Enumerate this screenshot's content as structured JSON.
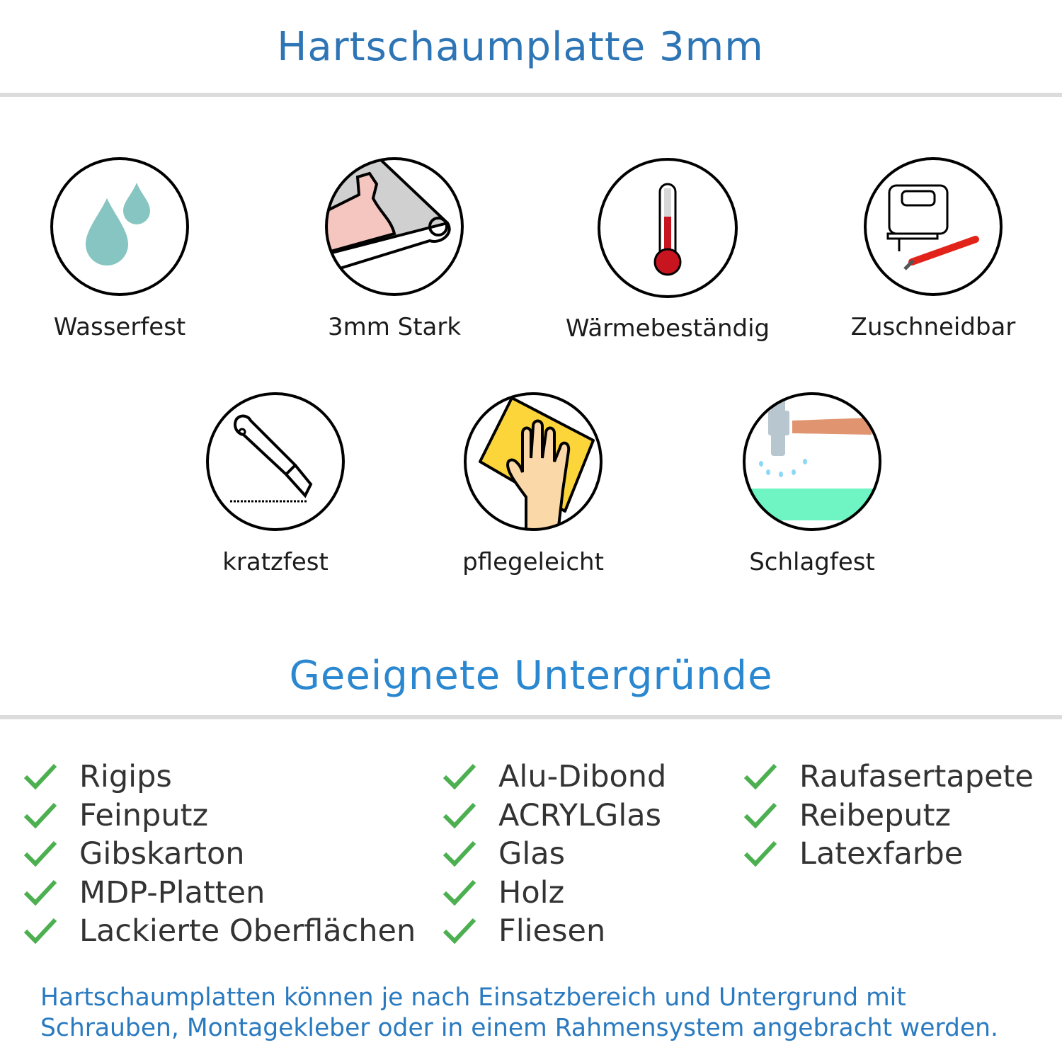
{
  "header": {
    "title": "Hartschaumplatte 3mm"
  },
  "features": [
    {
      "label": "Wasserfest",
      "icon": "water-drops-icon"
    },
    {
      "label": "3mm Stark",
      "icon": "strong-arm-icon"
    },
    {
      "label": "Wärmebeständig",
      "icon": "thermometer-icon"
    },
    {
      "label": "Zuschneidbar",
      "icon": "jigsaw-cutter-icon"
    },
    {
      "label": "kratzfest",
      "icon": "utility-knife-icon"
    },
    {
      "label": "pflegeleicht",
      "icon": "cleaning-hand-icon"
    },
    {
      "label": "Schlagfest",
      "icon": "hammer-icon"
    }
  ],
  "surfaces": {
    "title": "Geeignete Untergründe",
    "columns": [
      [
        "Rigips",
        "Feinputz",
        "Gibskarton",
        "MDP-Platten",
        "Lackierte Oberflächen"
      ],
      [
        "Alu-Dibond",
        "ACRYLGlas",
        "Glas",
        "Holz",
        "Fliesen"
      ],
      [
        "Raufasertapete",
        "Reibeputz",
        "Latexfarbe"
      ]
    ]
  },
  "footer": {
    "line1": "Hartschaumplatten können je nach Einsatzbereich und Untergrund mit",
    "line2": "Schrauben, Montagekleber oder in einem Rahmensystem angebracht werden."
  },
  "colors": {
    "title": "#2e75b6",
    "check": "#4caf50",
    "footer": "#2a7ac0"
  }
}
